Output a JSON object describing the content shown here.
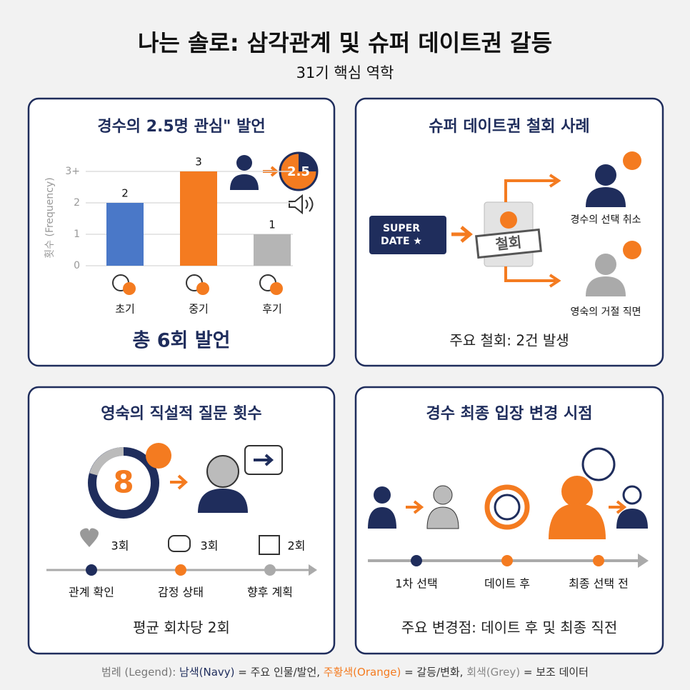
{
  "title": "나는 솔로: 삼각관계 및 슈퍼 데이트권 갈등",
  "subtitle": "31기 핵심 역학",
  "chart_data": {
    "type": "bar",
    "title": "경수의 2.5명 관심\" 발언",
    "ylabel": "횟수 (Frequency)",
    "categories": [
      "초기",
      "중기",
      "후기"
    ],
    "values": [
      2,
      3,
      1
    ],
    "colors": [
      "#4a78c8",
      "#f47b20",
      "#b5b5b5"
    ],
    "ylim": [
      0,
      3
    ],
    "yticks": [
      0,
      1,
      2,
      {
        "value": 3,
        "label": "3+"
      }
    ],
    "grid": true,
    "icon_label": "2.5",
    "footer": "총 6회 발언"
  },
  "panel2": {
    "title": "슈퍼 데이트권 철회 사례",
    "ticket": [
      "SUPER",
      "DATE ★"
    ],
    "stamp": "철회",
    "outcomes": [
      "경수의 선택 취소",
      "영숙의 거절 직면"
    ],
    "footer": "주요 철회: 2건 발생"
  },
  "panel3": {
    "title": "영숙의 직설적 질문 횟수",
    "count": "8",
    "items": [
      {
        "count": "3회",
        "label": "관계 확인"
      },
      {
        "count": "3회",
        "label": "감정 상태"
      },
      {
        "count": "2회",
        "label": "향후 계획"
      }
    ],
    "footer": "평균 회차당 2회"
  },
  "panel4": {
    "title": "경수 최종 입장 변경 시점",
    "steps": [
      "1차 선택",
      "데이트 후",
      "최종 선택 전"
    ],
    "footer": "주요 변경점: 데이트 후 및 최종 직전"
  },
  "legend": [
    {
      "text": "범례 (Legend): ",
      "color": "#777777"
    },
    {
      "text": "남색(Navy)",
      "color": "#1f2d5c"
    },
    {
      "text": " = 주요 인물/발언, ",
      "color": "#333333"
    },
    {
      "text": "주황색(Orange)",
      "color": "#f47b20"
    },
    {
      "text": " = 갈등/변화, ",
      "color": "#333333"
    },
    {
      "text": "회색(Grey)",
      "color": "#888888"
    },
    {
      "text": " = 보조 데이터",
      "color": "#333333"
    }
  ]
}
